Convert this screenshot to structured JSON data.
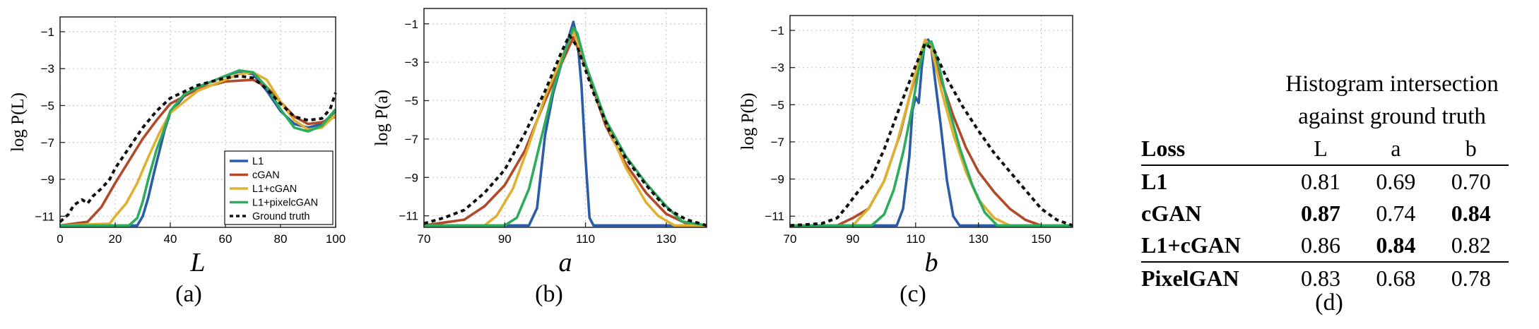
{
  "chart_data": [
    {
      "type": "line",
      "xlabel": "L",
      "ylabel": "log P(L)",
      "xlim": [
        0,
        100
      ],
      "ylim": [
        -11.6,
        -0.2
      ],
      "xticks": [
        0,
        20,
        40,
        60,
        80,
        100
      ],
      "yticks": [
        -1,
        -3,
        -5,
        -7,
        -9,
        -11
      ],
      "grid": true,
      "legend_position": "bottom-right",
      "series": [
        {
          "name": "L1",
          "color": "#2a5ca8",
          "dashed": false,
          "x": [
            0,
            28,
            30,
            32,
            34,
            36,
            38,
            40,
            45,
            50,
            55,
            60,
            65,
            70,
            75,
            80,
            85,
            90,
            95,
            100
          ],
          "y": [
            -11.5,
            -11.5,
            -11,
            -10,
            -8.7,
            -7.5,
            -6.3,
            -5.4,
            -4.5,
            -4.0,
            -3.7,
            -3.4,
            -3.15,
            -3.3,
            -4.2,
            -5.3,
            -6.0,
            -6.2,
            -6.0,
            -5.3
          ]
        },
        {
          "name": "cGAN",
          "color": "#b04a2a",
          "dashed": false,
          "x": [
            0,
            10,
            15,
            20,
            25,
            30,
            35,
            40,
            50,
            60,
            70,
            75,
            80,
            85,
            90,
            95,
            100
          ],
          "y": [
            -11.5,
            -11.3,
            -10.5,
            -9.2,
            -8.0,
            -6.8,
            -5.8,
            -4.9,
            -4.1,
            -3.7,
            -3.6,
            -4.0,
            -4.8,
            -5.6,
            -6.0,
            -5.9,
            -5.6
          ]
        },
        {
          "name": "L1+cGAN",
          "color": "#e0b030",
          "dashed": false,
          "x": [
            0,
            18,
            20,
            24,
            28,
            32,
            36,
            40,
            50,
            60,
            65,
            70,
            75,
            80,
            85,
            90,
            95,
            100
          ],
          "y": [
            -11.5,
            -11.4,
            -11,
            -10.3,
            -9.2,
            -7.8,
            -6.5,
            -5.4,
            -4.2,
            -3.6,
            -3.3,
            -3.2,
            -3.6,
            -4.8,
            -5.8,
            -6.3,
            -6.2,
            -5.5
          ]
        },
        {
          "name": "L1+pixelcGAN",
          "color": "#2eac5e",
          "dashed": false,
          "x": [
            0,
            25,
            28,
            30,
            32,
            35,
            38,
            40,
            45,
            50,
            55,
            60,
            65,
            70,
            75,
            80,
            85,
            90,
            95,
            100
          ],
          "y": [
            -11.5,
            -11.5,
            -11.1,
            -10.2,
            -9,
            -7.4,
            -6.2,
            -5.3,
            -4.4,
            -4.0,
            -3.7,
            -3.4,
            -3.1,
            -3.2,
            -4.0,
            -5.2,
            -6.2,
            -6.4,
            -6.1,
            -5.2
          ]
        },
        {
          "name": "Ground truth",
          "color": "#111111",
          "dashed": true,
          "x": [
            0,
            3,
            5,
            8,
            10,
            12,
            15,
            18,
            20,
            25,
            30,
            35,
            40,
            50,
            60,
            65,
            70,
            75,
            80,
            85,
            90,
            95,
            98,
            100
          ],
          "y": [
            -11.3,
            -10.9,
            -10.4,
            -10.1,
            -10.3,
            -9.9,
            -9.5,
            -9.0,
            -8.4,
            -7.3,
            -6.2,
            -5.3,
            -4.6,
            -3.9,
            -3.5,
            -3.4,
            -3.5,
            -4.1,
            -4.9,
            -5.6,
            -5.8,
            -5.7,
            -5.2,
            -4.3
          ]
        }
      ]
    },
    {
      "type": "line",
      "xlabel": "a",
      "ylabel": "log P(a)",
      "xlim": [
        70,
        140
      ],
      "ylim": [
        -11.6,
        -0.2
      ],
      "xticks": [
        70,
        90,
        110,
        130
      ],
      "yticks": [
        -1,
        -3,
        -5,
        -7,
        -9,
        -11
      ],
      "grid": true,
      "series": [
        {
          "name": "L1",
          "color": "#2a5ca8",
          "dashed": false,
          "x": [
            70,
            96,
            98,
            100,
            102,
            104,
            106,
            107,
            108,
            109,
            110,
            111,
            112,
            140
          ],
          "y": [
            -11.5,
            -11.5,
            -10.6,
            -6.8,
            -4.6,
            -3.1,
            -1.6,
            -0.9,
            -1.8,
            -4.2,
            -8.0,
            -11.1,
            -11.5,
            -11.5
          ]
        },
        {
          "name": "cGAN",
          "color": "#b04a2a",
          "dashed": false,
          "x": [
            70,
            80,
            85,
            90,
            95,
            100,
            104,
            107,
            110,
            115,
            120,
            125,
            130,
            135,
            140
          ],
          "y": [
            -11.5,
            -11.2,
            -10.5,
            -9.4,
            -7.6,
            -5.0,
            -3.1,
            -1.7,
            -3.2,
            -6.3,
            -8.3,
            -9.8,
            -10.9,
            -11.4,
            -11.5
          ]
        },
        {
          "name": "L1+cGAN",
          "color": "#e0b030",
          "dashed": false,
          "x": [
            70,
            85,
            88,
            92,
            96,
            100,
            104,
            107,
            110,
            115,
            120,
            125,
            128,
            132,
            140
          ],
          "y": [
            -11.5,
            -11.5,
            -11.0,
            -9.6,
            -7.3,
            -4.8,
            -2.8,
            -1.4,
            -3.1,
            -6.1,
            -8.5,
            -10.3,
            -11.0,
            -11.5,
            -11.5
          ]
        },
        {
          "name": "L1+pixelcGAN",
          "color": "#2eac5e",
          "dashed": false,
          "x": [
            70,
            90,
            93,
            96,
            99,
            102,
            105,
            107,
            108,
            110,
            115,
            120,
            125,
            130,
            134,
            140
          ],
          "y": [
            -11.5,
            -11.5,
            -11.1,
            -9.6,
            -7.0,
            -4.4,
            -2.4,
            -1.2,
            -1.5,
            -3.1,
            -6.0,
            -7.9,
            -9.3,
            -10.5,
            -11.3,
            -11.5
          ]
        },
        {
          "name": "Ground truth",
          "color": "#111111",
          "dashed": true,
          "x": [
            70,
            75,
            80,
            85,
            90,
            95,
            100,
            104,
            106,
            108,
            112,
            116,
            120,
            125,
            130,
            135,
            140
          ],
          "y": [
            -11.4,
            -11.1,
            -10.7,
            -9.8,
            -8.6,
            -6.7,
            -4.5,
            -2.5,
            -1.6,
            -2.2,
            -4.6,
            -6.6,
            -8.0,
            -9.4,
            -10.6,
            -11.2,
            -11.5
          ]
        }
      ]
    },
    {
      "type": "line",
      "xlabel": "b",
      "ylabel": "log P(b)",
      "xlim": [
        70,
        160
      ],
      "ylim": [
        -11.6,
        -0.2
      ],
      "xticks": [
        70,
        90,
        110,
        130,
        150
      ],
      "yticks": [
        -1,
        -3,
        -5,
        -7,
        -9,
        -11
      ],
      "grid": true,
      "series": [
        {
          "name": "L1",
          "color": "#2a5ca8",
          "dashed": false,
          "x": [
            70,
            104,
            106,
            108,
            109,
            110,
            111,
            112,
            113,
            114,
            115,
            116,
            118,
            120,
            122,
            124,
            126,
            160
          ],
          "y": [
            -11.5,
            -11.5,
            -10.6,
            -7.8,
            -5.3,
            -4.6,
            -4.9,
            -2.9,
            -1.6,
            -1.5,
            -1.9,
            -3.4,
            -6.1,
            -9.1,
            -11.0,
            -11.5,
            -11.5,
            -11.5
          ]
        },
        {
          "name": "cGAN",
          "color": "#b04a2a",
          "dashed": false,
          "x": [
            70,
            85,
            90,
            95,
            100,
            105,
            108,
            111,
            113,
            115,
            118,
            122,
            126,
            130,
            135,
            140,
            145,
            150,
            160
          ],
          "y": [
            -11.5,
            -11.5,
            -11.1,
            -10.6,
            -9.1,
            -6.6,
            -4.6,
            -2.9,
            -1.6,
            -1.8,
            -3.6,
            -5.6,
            -7.3,
            -8.6,
            -9.7,
            -10.6,
            -11.2,
            -11.5,
            -11.5
          ]
        },
        {
          "name": "L1+cGAN",
          "color": "#e0b030",
          "dashed": false,
          "x": [
            70,
            90,
            95,
            100,
            104,
            108,
            111,
            113,
            115,
            118,
            122,
            126,
            130,
            135,
            140,
            160
          ],
          "y": [
            -11.5,
            -11.5,
            -10.6,
            -9.1,
            -7.1,
            -4.6,
            -2.6,
            -1.5,
            -1.9,
            -4.1,
            -6.6,
            -8.6,
            -10.1,
            -11.1,
            -11.5,
            -11.5
          ]
        },
        {
          "name": "L1+pixelcGAN",
          "color": "#2eac5e",
          "dashed": false,
          "x": [
            70,
            96,
            100,
            103,
            106,
            109,
            111,
            113,
            115,
            117,
            120,
            124,
            128,
            132,
            136,
            160
          ],
          "y": [
            -11.5,
            -11.5,
            -10.9,
            -9.6,
            -7.6,
            -5.1,
            -3.1,
            -1.8,
            -1.6,
            -2.6,
            -4.8,
            -7.3,
            -9.3,
            -10.8,
            -11.5,
            -11.5
          ]
        },
        {
          "name": "Ground truth",
          "color": "#111111",
          "dashed": true,
          "x": [
            70,
            80,
            85,
            88,
            92,
            96,
            100,
            105,
            110,
            113,
            116,
            120,
            125,
            130,
            135,
            140,
            145,
            150,
            155,
            160
          ],
          "y": [
            -11.5,
            -11.4,
            -11.1,
            -10.5,
            -9.6,
            -8.9,
            -7.4,
            -5.1,
            -2.9,
            -1.7,
            -2.1,
            -3.6,
            -5.1,
            -6.4,
            -7.6,
            -8.6,
            -9.6,
            -10.6,
            -11.2,
            -11.5
          ]
        }
      ]
    }
  ],
  "captions": {
    "a": "(a)",
    "b": "(b)",
    "c": "(c)",
    "d": "(d)"
  },
  "table": {
    "header_line1": "Histogram intersection",
    "header_line2": "against ground truth",
    "columns": [
      "Loss",
      "L",
      "a",
      "b"
    ],
    "rows": [
      {
        "loss": "L1",
        "L": "0.81",
        "a": "0.69",
        "b": "0.70"
      },
      {
        "loss": "cGAN",
        "L": "0.87",
        "a": "0.74",
        "b": "0.84"
      },
      {
        "loss": "L1+cGAN",
        "L": "0.86",
        "a": "0.84",
        "b": "0.82"
      },
      {
        "loss": "PixelGAN",
        "L": "0.83",
        "a": "0.68",
        "b": "0.78"
      }
    ]
  }
}
